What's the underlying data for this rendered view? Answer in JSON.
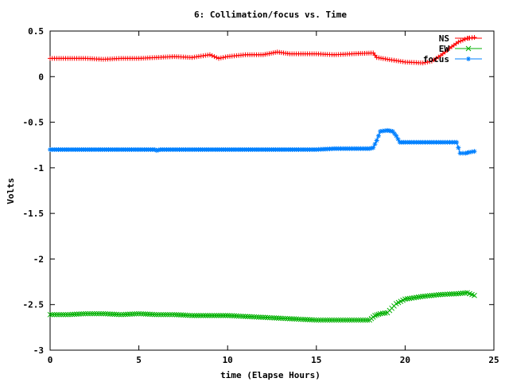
{
  "chart_data": {
    "type": "line",
    "title": "6: Collimation/focus vs. Time",
    "xlabel": "time (Elapse Hours)",
    "ylabel": "Volts",
    "xlim": [
      0,
      25
    ],
    "ylim": [
      -3,
      0.5
    ],
    "x_ticks": [
      "0",
      "5",
      "10",
      "15",
      "20",
      "25"
    ],
    "y_ticks": [
      "0.5",
      "0",
      "-0.5",
      "-1",
      "-1.5",
      "-2",
      "-2.5",
      "-3"
    ],
    "grid": false,
    "legend_position": "top-right",
    "series": [
      {
        "name": "NS",
        "color": "#ff0000",
        "marker": "plus",
        "points": [
          [
            0,
            0.2
          ],
          [
            1,
            0.2
          ],
          [
            2,
            0.2
          ],
          [
            3,
            0.19
          ],
          [
            4,
            0.2
          ],
          [
            5,
            0.2
          ],
          [
            6,
            0.21
          ],
          [
            7,
            0.22
          ],
          [
            8,
            0.21
          ],
          [
            9,
            0.24
          ],
          [
            9.5,
            0.2
          ],
          [
            10,
            0.22
          ],
          [
            11,
            0.24
          ],
          [
            12,
            0.24
          ],
          [
            12.8,
            0.27
          ],
          [
            13.5,
            0.25
          ],
          [
            14,
            0.25
          ],
          [
            15,
            0.25
          ],
          [
            16,
            0.24
          ],
          [
            17,
            0.25
          ],
          [
            18.2,
            0.26
          ],
          [
            18.4,
            0.21
          ],
          [
            19,
            0.19
          ],
          [
            20,
            0.16
          ],
          [
            21,
            0.15
          ],
          [
            21.5,
            0.17
          ],
          [
            22,
            0.23
          ],
          [
            22.5,
            0.31
          ],
          [
            23,
            0.38
          ],
          [
            23.5,
            0.42
          ],
          [
            23.9,
            0.43
          ]
        ]
      },
      {
        "name": "EW",
        "color": "#00b000",
        "marker": "cross",
        "points": [
          [
            0,
            -2.61
          ],
          [
            1,
            -2.61
          ],
          [
            2,
            -2.6
          ],
          [
            3,
            -2.6
          ],
          [
            4,
            -2.61
          ],
          [
            5,
            -2.6
          ],
          [
            6,
            -2.61
          ],
          [
            7,
            -2.61
          ],
          [
            8,
            -2.62
          ],
          [
            9,
            -2.62
          ],
          [
            10,
            -2.62
          ],
          [
            11,
            -2.63
          ],
          [
            12,
            -2.64
          ],
          [
            13,
            -2.65
          ],
          [
            14,
            -2.66
          ],
          [
            15,
            -2.67
          ],
          [
            16,
            -2.67
          ],
          [
            17,
            -2.67
          ],
          [
            18,
            -2.67
          ],
          [
            18.3,
            -2.62
          ],
          [
            18.6,
            -2.6
          ],
          [
            19,
            -2.59
          ],
          [
            19.5,
            -2.49
          ],
          [
            20,
            -2.44
          ],
          [
            21,
            -2.41
          ],
          [
            22,
            -2.39
          ],
          [
            23,
            -2.38
          ],
          [
            23.5,
            -2.37
          ],
          [
            23.9,
            -2.4
          ]
        ]
      },
      {
        "name": "focus",
        "color": "#0080ff",
        "marker": "star",
        "points": [
          [
            0,
            -0.8
          ],
          [
            2,
            -0.8
          ],
          [
            4,
            -0.8
          ],
          [
            5.9,
            -0.8
          ],
          [
            6,
            -0.81
          ],
          [
            6.2,
            -0.8
          ],
          [
            8,
            -0.8
          ],
          [
            10,
            -0.8
          ],
          [
            12,
            -0.8
          ],
          [
            14,
            -0.8
          ],
          [
            15,
            -0.8
          ],
          [
            16,
            -0.79
          ],
          [
            17,
            -0.79
          ],
          [
            18,
            -0.79
          ],
          [
            18.2,
            -0.78
          ],
          [
            18.4,
            -0.7
          ],
          [
            18.6,
            -0.6
          ],
          [
            19,
            -0.59
          ],
          [
            19.3,
            -0.6
          ],
          [
            19.5,
            -0.65
          ],
          [
            19.7,
            -0.72
          ],
          [
            20,
            -0.72
          ],
          [
            21,
            -0.72
          ],
          [
            22,
            -0.72
          ],
          [
            22.9,
            -0.72
          ],
          [
            23.1,
            -0.84
          ],
          [
            23.4,
            -0.84
          ],
          [
            23.6,
            -0.83
          ],
          [
            23.9,
            -0.82
          ]
        ]
      }
    ]
  }
}
